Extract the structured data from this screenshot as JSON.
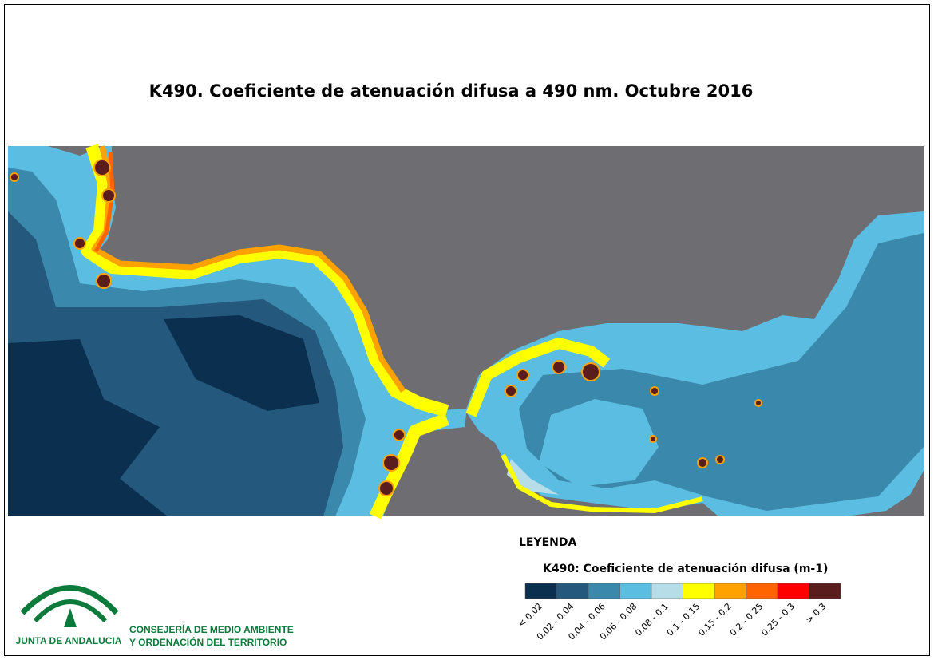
{
  "title": "K490. Coeficiente de atenuación difusa a 490 nm. Octubre 2016",
  "legend": {
    "heading": "LEYENDA",
    "title": "K490: Coeficiente de atenuación difusa (m-1)",
    "classes": [
      {
        "label": "< 0.02",
        "color": "#0b2f4e"
      },
      {
        "label": "0.02 - 0.04",
        "color": "#24587c"
      },
      {
        "label": "0.04 - 0.06",
        "color": "#3a88ab"
      },
      {
        "label": "0.06 - 0.08",
        "color": "#5bbde1"
      },
      {
        "label": "0.08 - 0.1",
        "color": "#b6dde8"
      },
      {
        "label": "0.1 - 0.15",
        "color": "#ffff00"
      },
      {
        "label": "0.15 - 0.2",
        "color": "#ffa200"
      },
      {
        "label": "0.2 - 0.25",
        "color": "#ff6400"
      },
      {
        "label": "0.25 - 0.3",
        "color": "#ff0000"
      },
      {
        "label": "> 0.3",
        "color": "#5a1c1c"
      }
    ]
  },
  "logo": {
    "name": "JUNTA DE ANDALUCIA",
    "department": [
      "CONSEJERÍA DE MEDIO AMBIENTE",
      "Y ORDENACIÓN DEL TERRITORIO"
    ]
  }
}
